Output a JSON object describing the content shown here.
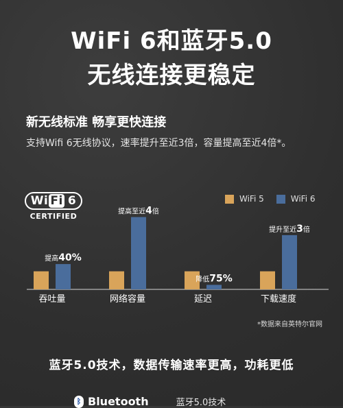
{
  "hero": {
    "line1": "WiFi 6和蓝牙5.0",
    "line2": "无线连接更稳定"
  },
  "subheading": "新无线标准 畅享更快连接",
  "description": "支持Wifi 6无线协议，速率提升至近3倍，容量提高至近4倍*。",
  "wifi_logo": {
    "text_before": "Wi",
    "text_highlight": "Fi",
    "text_after": "6",
    "certified": "CERTIFIED"
  },
  "colors": {
    "wifi5": "#d9a45a",
    "wifi6": "#4a6d9c"
  },
  "chart_data": {
    "type": "bar",
    "categories": [
      "吞吐量",
      "网络容量",
      "延迟",
      "下载速度"
    ],
    "series": [
      {
        "name": "WiFi 5",
        "values": [
          1,
          1,
          1,
          1
        ]
      },
      {
        "name": "WiFi 6",
        "values": [
          1.4,
          4,
          0.25,
          3
        ]
      }
    ],
    "annotations": [
      {
        "prefix": "提高",
        "value": "40%"
      },
      {
        "prefix": "提高至近",
        "value": "4",
        "suffix": "倍"
      },
      {
        "prefix": "降低",
        "value": "75%"
      },
      {
        "prefix": "提升至近",
        "value": "3",
        "suffix": "倍"
      }
    ],
    "legend": {
      "items": [
        "WiFi 5",
        "WiFi 6"
      ],
      "position": "top-right"
    },
    "ylim": [
      0,
      4.4
    ]
  },
  "source_note": "*数据来自英特尔官网",
  "bottom_heading": "蓝牙5.0技术，数据传输速率更高，功耗更低",
  "bluetooth": {
    "logo_text": "Bluetooth",
    "label": "蓝牙5.0技术"
  }
}
